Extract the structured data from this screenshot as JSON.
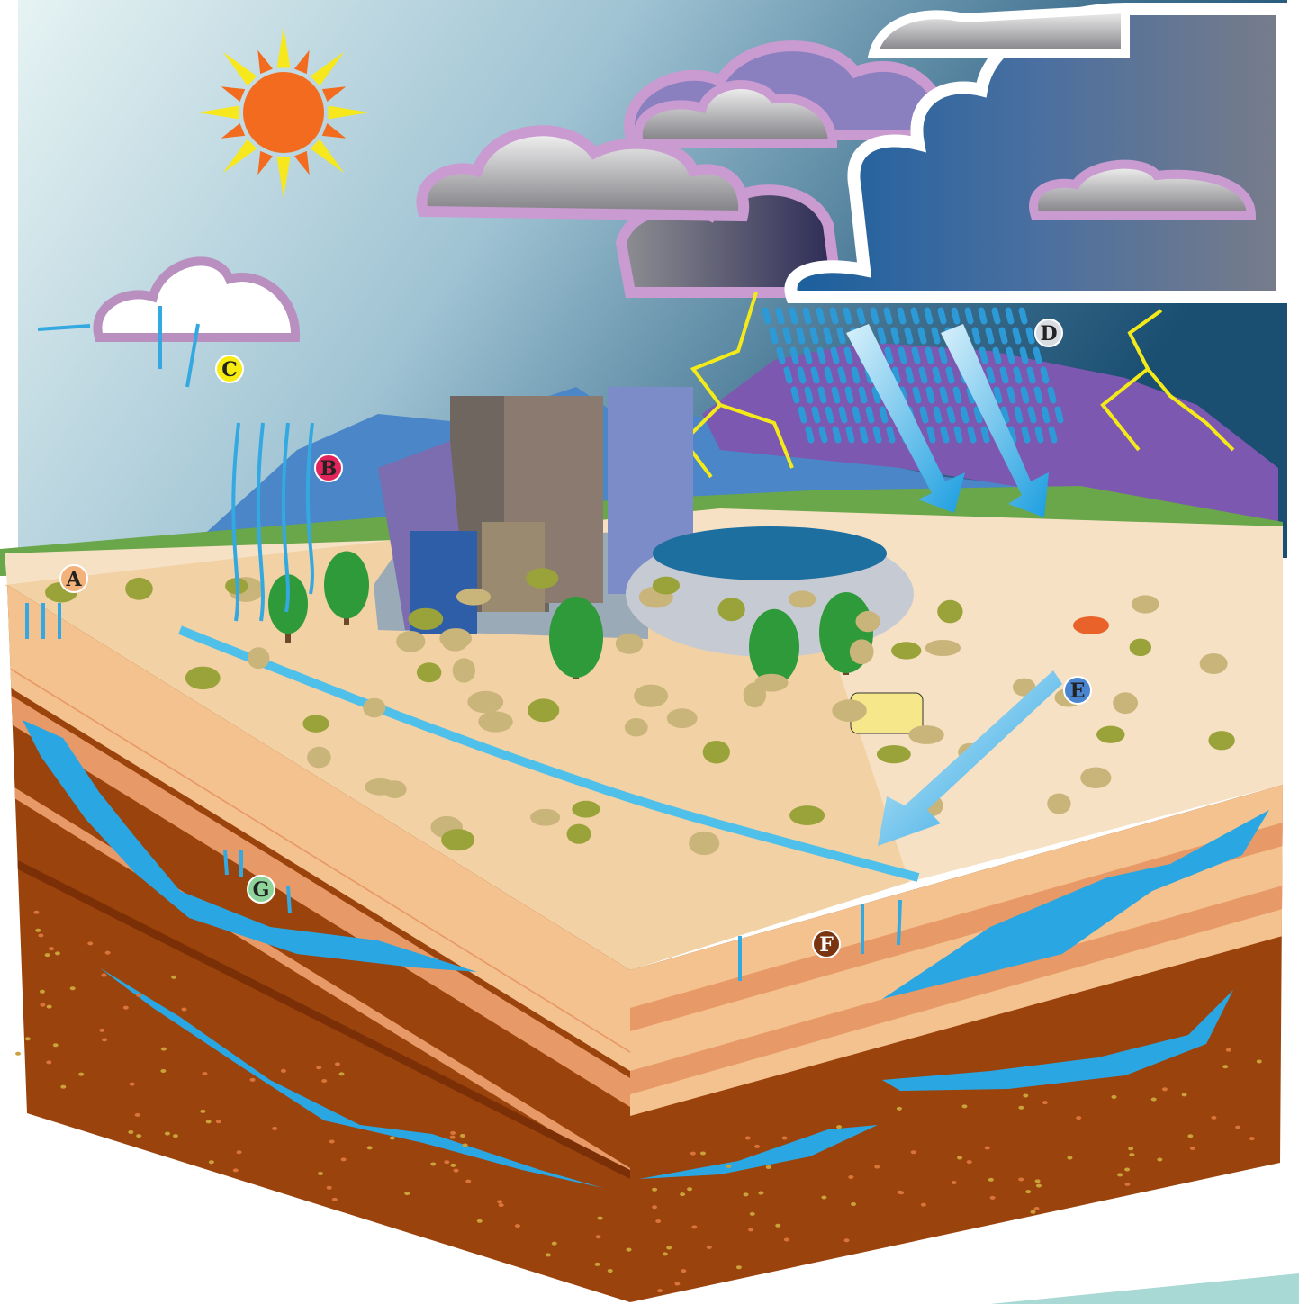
{
  "markers": [
    "A",
    "B",
    "C",
    "D",
    "E",
    "F",
    "G"
  ]
}
